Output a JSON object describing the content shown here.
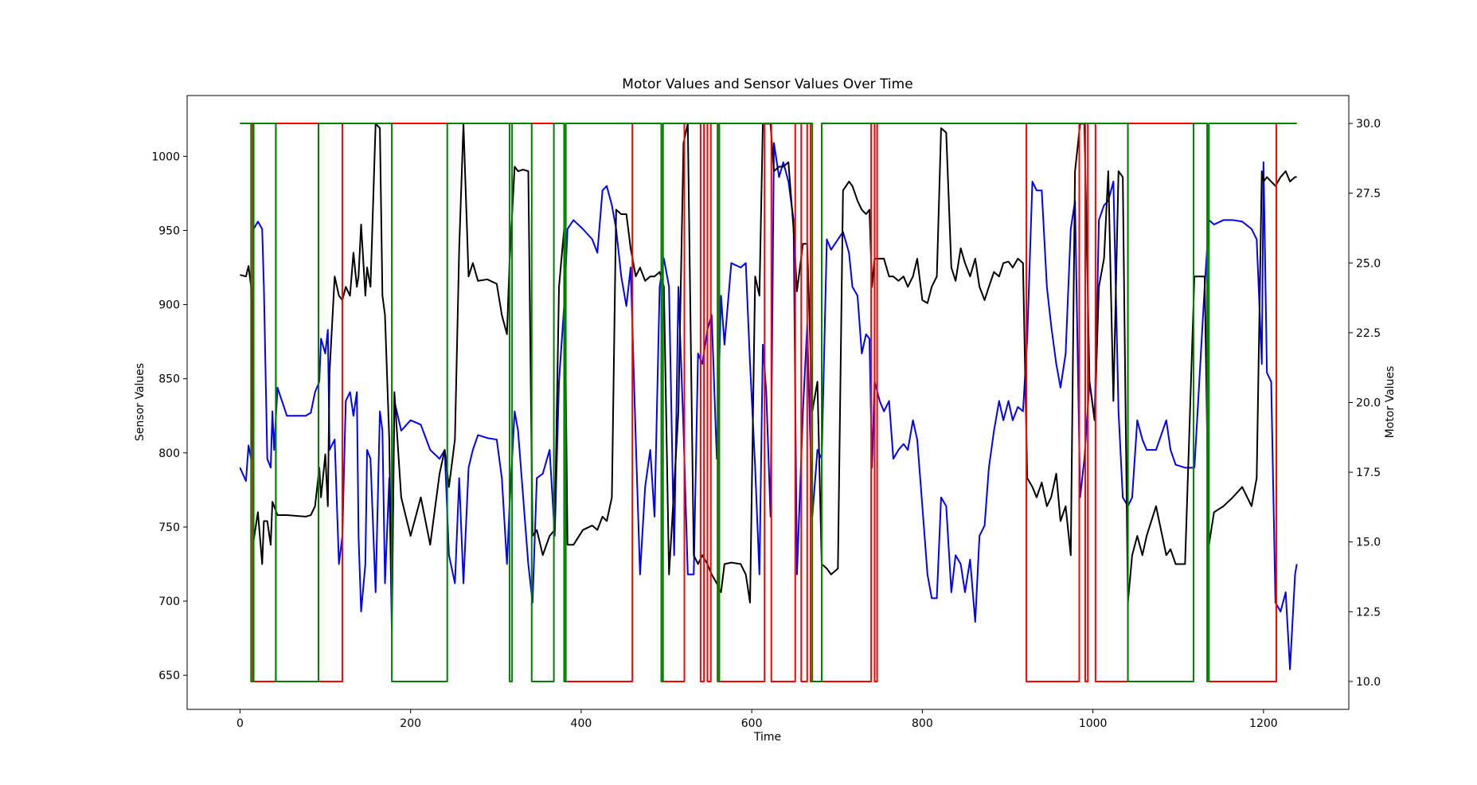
{
  "chart_data": {
    "type": "line",
    "title": "Motor Values and Sensor Values Over Time",
    "xlabel": "Time",
    "ylabel": "Sensor Values",
    "y2label": "Motor Values",
    "y_axis_color": "#0000ff",
    "y2_axis_color": "#ff0000",
    "xlim": [
      -62,
      1300
    ],
    "xticks": [
      0,
      200,
      400,
      600,
      800,
      1000,
      1200
    ],
    "ylim": [
      627,
      1041
    ],
    "yticks": [
      650,
      700,
      750,
      800,
      850,
      900,
      950,
      1000
    ],
    "y2lim": [
      9,
      31
    ],
    "y2ticks": [
      {
        "value": 10,
        "label": "10.0"
      },
      {
        "value": 12.5,
        "label": "12.5"
      },
      {
        "value": 15,
        "label": "15.0"
      },
      {
        "value": 17.5,
        "label": "17.5"
      },
      {
        "value": 20,
        "label": "20.0"
      },
      {
        "value": 22.5,
        "label": "22.5"
      },
      {
        "value": 25,
        "label": "25.0"
      },
      {
        "value": 27.5,
        "label": "27.5"
      },
      {
        "value": 30,
        "label": "30.0"
      }
    ],
    "grid": false,
    "series": [
      {
        "color": "#0000ff",
        "axis": "y",
        "x": [
          0,
          7,
          10,
          13,
          16,
          21,
          26,
          28,
          32,
          36,
          38,
          40,
          44,
          55,
          77,
          83,
          88,
          93,
          95,
          100,
          103,
          105,
          111,
          116,
          120,
          124,
          129,
          133,
          137,
          139,
          142,
          147,
          149,
          153,
          159,
          164,
          167,
          170,
          175,
          178,
          181,
          189,
          200,
          212,
          223,
          234,
          240,
          245,
          252,
          257,
          262,
          268,
          273,
          279,
          290,
          301,
          307,
          313,
          316,
          322,
          326,
          332,
          338,
          343,
          348,
          355,
          363,
          369,
          374,
          380,
          384,
          391,
          402,
          413,
          419,
          425,
          430,
          436,
          441,
          447,
          453,
          458,
          464,
          469,
          475,
          481,
          486,
          492,
          497,
          503,
          509,
          514,
          520,
          525,
          532,
          537,
          542,
          548,
          553,
          559,
          564,
          568,
          576,
          587,
          593,
          598,
          604,
          609,
          613,
          617,
          622,
          626,
          632,
          637,
          643,
          649,
          653,
          660,
          665,
          671,
          677,
          682,
          688,
          693,
          701,
          707,
          714,
          718,
          724,
          729,
          734,
          738,
          741,
          744,
          750,
          755,
          761,
          766,
          772,
          778,
          783,
          789,
          794,
          800,
          806,
          811,
          817,
          822,
          828,
          834,
          839,
          845,
          850,
          856,
          862,
          867,
          873,
          878,
          884,
          890,
          895,
          901,
          906,
          912,
          918,
          923,
          929,
          934,
          940,
          946,
          951,
          957,
          962,
          968,
          974,
          979,
          985,
          990,
          996,
          1002,
          1007,
          1013,
          1018,
          1024,
          1030,
          1035,
          1041,
          1046,
          1052,
          1058,
          1063,
          1074,
          1086,
          1091,
          1097,
          1108,
          1119,
          1131,
          1136,
          1142,
          1153,
          1164,
          1175,
          1186,
          1192,
          1198,
          1200,
          1204,
          1209,
          1214,
          1220,
          1226,
          1231,
          1237,
          1239
        ],
        "values": [
          790,
          781,
          805,
          796,
          951,
          956,
          951,
          912,
          796,
          790,
          828,
          802,
          844,
          825,
          825,
          827,
          841,
          848,
          877,
          867,
          883,
          802,
          809,
          725,
          744,
          835,
          841,
          825,
          841,
          744,
          693,
          725,
          802,
          796,
          706,
          828,
          815,
          712,
          783,
          680,
          835,
          815,
          822,
          819,
          802,
          796,
          802,
          731,
          712,
          783,
          712,
          790,
          802,
          812,
          810,
          809,
          783,
          725,
          764,
          828,
          815,
          770,
          725,
          699,
          783,
          786,
          802,
          744,
          848,
          899,
          951,
          957,
          951,
          944,
          935,
          977,
          980,
          967,
          951,
          919,
          899,
          925,
          809,
          718,
          777,
          802,
          757,
          912,
          931,
          912,
          731,
          912,
          815,
          718,
          718,
          867,
          860,
          883,
          893,
          796,
          906,
          873,
          928,
          925,
          928,
          860,
          790,
          718,
          873,
          841,
          757,
          1009,
          986,
          996,
          983,
          957,
          718,
          828,
          886,
          757,
          802,
          796,
          944,
          937,
          944,
          949,
          935,
          912,
          906,
          867,
          880,
          877,
          790,
          848,
          835,
          828,
          835,
          796,
          802,
          806,
          802,
          822,
          809,
          764,
          718,
          702,
          702,
          770,
          764,
          706,
          731,
          725,
          706,
          728,
          686,
          744,
          751,
          790,
          815,
          835,
          822,
          835,
          822,
          831,
          828,
          877,
          983,
          977,
          977,
          912,
          886,
          860,
          844,
          867,
          951,
          970,
          770,
          796,
          848,
          822,
          957,
          967,
          970,
          983,
          828,
          770,
          764,
          770,
          822,
          809,
          802,
          802,
          822,
          802,
          792,
          790,
          790,
          912,
          957,
          954,
          957,
          957,
          956,
          951,
          944,
          860,
          996,
          854,
          848,
          699,
          693,
          706,
          654,
          718,
          725
        ]
      },
      {
        "color": "#000000",
        "axis": "y",
        "x": [
          0,
          7,
          10,
          13,
          16,
          21,
          26,
          28,
          32,
          36,
          38,
          40,
          44,
          55,
          77,
          83,
          88,
          93,
          95,
          100,
          103,
          105,
          111,
          116,
          120,
          124,
          129,
          133,
          137,
          139,
          142,
          147,
          149,
          153,
          159,
          164,
          167,
          170,
          175,
          178,
          181,
          189,
          200,
          212,
          223,
          234,
          240,
          245,
          252,
          257,
          262,
          268,
          273,
          279,
          290,
          301,
          307,
          313,
          316,
          322,
          326,
          332,
          338,
          343,
          348,
          355,
          363,
          369,
          374,
          380,
          384,
          391,
          402,
          413,
          419,
          425,
          430,
          436,
          441,
          447,
          453,
          458,
          464,
          469,
          475,
          481,
          486,
          492,
          497,
          503,
          509,
          514,
          520,
          525,
          532,
          537,
          542,
          548,
          553,
          559,
          564,
          568,
          576,
          587,
          593,
          598,
          604,
          609,
          613,
          617,
          622,
          626,
          632,
          637,
          643,
          649,
          653,
          660,
          665,
          671,
          677,
          682,
          688,
          693,
          701,
          707,
          714,
          718,
          724,
          729,
          734,
          738,
          741,
          744,
          750,
          755,
          761,
          766,
          772,
          778,
          783,
          789,
          794,
          800,
          806,
          811,
          817,
          822,
          828,
          834,
          839,
          845,
          850,
          856,
          862,
          867,
          873,
          878,
          884,
          890,
          895,
          901,
          906,
          912,
          918,
          923,
          929,
          934,
          940,
          946,
          951,
          957,
          962,
          968,
          974,
          979,
          985,
          990,
          996,
          1002,
          1007,
          1013,
          1018,
          1024,
          1030,
          1035,
          1041,
          1046,
          1052,
          1058,
          1063,
          1074,
          1086,
          1091,
          1097,
          1108,
          1119,
          1131,
          1136,
          1142,
          1153,
          1164,
          1175,
          1186,
          1192,
          1198,
          1200,
          1204,
          1209,
          1214,
          1220,
          1226,
          1231,
          1237,
          1239
        ],
        "values": [
          920,
          919,
          926,
          912,
          741,
          760,
          725,
          754,
          754,
          738,
          767,
          764,
          758,
          758,
          757,
          758,
          764,
          790,
          770,
          799,
          764,
          854,
          919,
          906,
          903,
          912,
          906,
          935,
          912,
          919,
          954,
          906,
          925,
          912,
          1022,
          1019,
          906,
          893,
          809,
          693,
          841,
          770,
          744,
          770,
          738,
          786,
          802,
          777,
          809,
          938,
          1022,
          919,
          928,
          916,
          917,
          914,
          893,
          880,
          928,
          993,
          990,
          991,
          990,
          744,
          748,
          731,
          744,
          748,
          912,
          951,
          738,
          738,
          748,
          751,
          748,
          757,
          754,
          770,
          964,
          961,
          961,
          938,
          919,
          925,
          916,
          919,
          919,
          922,
          912,
          718,
          777,
          828,
          1009,
          1022,
          731,
          725,
          731,
          725,
          718,
          712,
          706,
          725,
          726,
          725,
          718,
          699,
          919,
          906,
          1022,
          1022,
          1022,
          990,
          993,
          993,
          996,
          951,
          909,
          941,
          941,
          828,
          848,
          725,
          722,
          718,
          722,
          977,
          983,
          980,
          970,
          964,
          961,
          964,
          912,
          931,
          931,
          931,
          919,
          919,
          916,
          919,
          912,
          919,
          931,
          903,
          901,
          912,
          919,
          1019,
          1016,
          925,
          916,
          938,
          928,
          919,
          931,
          912,
          903,
          912,
          922,
          919,
          928,
          929,
          925,
          931,
          928,
          783,
          777,
          770,
          780,
          764,
          770,
          786,
          754,
          764,
          731,
          990,
          1022,
          1022,
          848,
          822,
          912,
          931,
          990,
          835,
          990,
          986,
          699,
          731,
          744,
          731,
          744,
          764,
          731,
          735,
          725,
          725,
          919,
          919,
          738,
          760,
          764,
          770,
          777,
          764,
          783,
          990,
          983,
          986,
          983,
          980,
          986,
          990,
          983,
          986,
          986
        ]
      },
      {
        "color": "#ff0000",
        "axis": "y2",
        "x": [
          0,
          15,
          15,
          42,
          42,
          92,
          92,
          120,
          120,
          380,
          380,
          460,
          460,
          494,
          494,
          521,
          521,
          540,
          540,
          544,
          544,
          548,
          548,
          552,
          552,
          560,
          560,
          615,
          615,
          623,
          623,
          651,
          651,
          658,
          658,
          665,
          665,
          669,
          669,
          740,
          740,
          744,
          744,
          747,
          747,
          922,
          922,
          984,
          984,
          991,
          991,
          994,
          994,
          1003,
          1003,
          1041,
          1041,
          1134,
          1134,
          1215,
          1215,
          1239
        ],
        "values": [
          30,
          30,
          10,
          10,
          30,
          30,
          10,
          10,
          30,
          30,
          10,
          10,
          30,
          30,
          10,
          10,
          30,
          30,
          10,
          10,
          30,
          30,
          10,
          10,
          30,
          30,
          10,
          10,
          30,
          30,
          10,
          10,
          30,
          30,
          10,
          10,
          30,
          30,
          10,
          10,
          30,
          30,
          10,
          10,
          30,
          30,
          10,
          10,
          30,
          30,
          10,
          10,
          30,
          30,
          10,
          10,
          30,
          30,
          10,
          10,
          30,
          30
        ]
      },
      {
        "color": "#008000",
        "axis": "y2",
        "x": [
          0,
          13,
          13,
          16,
          16,
          42,
          42,
          92,
          92,
          178,
          178,
          243,
          243,
          316,
          316,
          319,
          319,
          342,
          342,
          368,
          368,
          380,
          380,
          382,
          382,
          494,
          494,
          496,
          496,
          560,
          560,
          562,
          562,
          671,
          671,
          682,
          682,
          1041,
          1041,
          1118,
          1118,
          1134,
          1134,
          1136,
          1136,
          1239
        ],
        "values": [
          30,
          30,
          10,
          10,
          30,
          30,
          10,
          10,
          30,
          30,
          10,
          10,
          30,
          30,
          10,
          10,
          30,
          30,
          10,
          10,
          30,
          30,
          10,
          10,
          30,
          30,
          10,
          10,
          30,
          30,
          10,
          10,
          30,
          30,
          10,
          10,
          30,
          30,
          10,
          10,
          30,
          30,
          10,
          10,
          30,
          30
        ]
      }
    ]
  }
}
